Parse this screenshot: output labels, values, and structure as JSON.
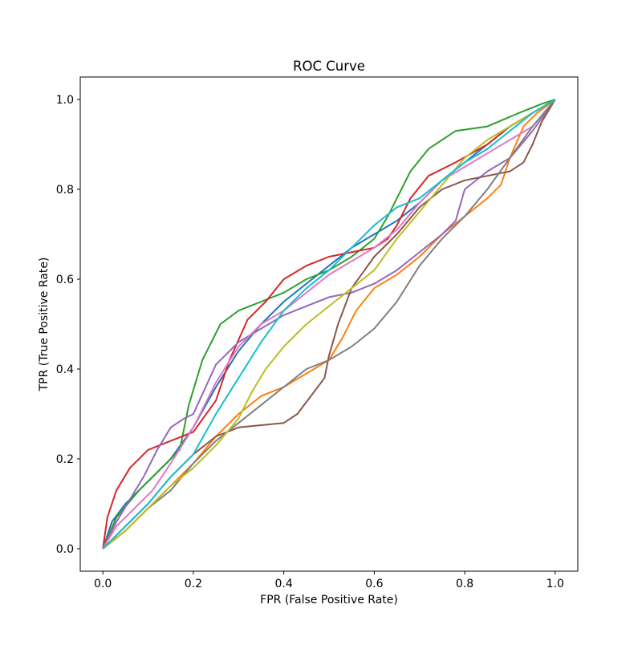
{
  "chart_data": {
    "type": "line",
    "title": "ROC Curve",
    "xlabel": "FPR (False Positive Rate)",
    "ylabel": "TPR (True Positive Rate)",
    "xlim": [
      -0.05,
      1.05
    ],
    "ylim": [
      -0.05,
      1.05
    ],
    "xticks": [
      "0.0",
      "0.2",
      "0.4",
      "0.6",
      "0.8",
      "1.0"
    ],
    "yticks": [
      "0.0",
      "0.2",
      "0.4",
      "0.6",
      "0.8",
      "1.0"
    ],
    "grid": false,
    "legend": "none",
    "series": [
      {
        "color": "#1f77b4",
        "x": [
          0,
          0.02,
          0.05,
          0.1,
          0.15,
          0.2,
          0.25,
          0.3,
          0.35,
          0.4,
          0.45,
          0.5,
          0.55,
          0.6,
          0.65,
          0.7,
          0.75,
          0.8,
          0.85,
          0.9,
          0.95,
          1.0
        ],
        "y": [
          0,
          0.06,
          0.1,
          0.15,
          0.2,
          0.27,
          0.36,
          0.44,
          0.5,
          0.55,
          0.59,
          0.63,
          0.67,
          0.7,
          0.73,
          0.77,
          0.82,
          0.86,
          0.9,
          0.94,
          0.97,
          1.0
        ]
      },
      {
        "color": "#ff7f0e",
        "x": [
          0,
          0.05,
          0.1,
          0.15,
          0.2,
          0.25,
          0.3,
          0.35,
          0.4,
          0.45,
          0.5,
          0.53,
          0.56,
          0.6,
          0.65,
          0.7,
          0.75,
          0.8,
          0.85,
          0.88,
          0.9,
          0.93,
          0.96,
          1.0
        ],
        "y": [
          0,
          0.04,
          0.09,
          0.14,
          0.19,
          0.25,
          0.3,
          0.34,
          0.36,
          0.39,
          0.42,
          0.47,
          0.53,
          0.58,
          0.61,
          0.65,
          0.7,
          0.74,
          0.78,
          0.81,
          0.87,
          0.94,
          0.97,
          1.0
        ]
      },
      {
        "color": "#2ca02c",
        "x": [
          0,
          0.03,
          0.08,
          0.13,
          0.17,
          0.19,
          0.22,
          0.26,
          0.3,
          0.35,
          0.4,
          0.45,
          0.5,
          0.55,
          0.6,
          0.63,
          0.65,
          0.68,
          0.72,
          0.78,
          0.85,
          0.92,
          0.97,
          1.0
        ],
        "y": [
          0,
          0.07,
          0.13,
          0.18,
          0.22,
          0.32,
          0.42,
          0.5,
          0.53,
          0.55,
          0.57,
          0.6,
          0.62,
          0.65,
          0.69,
          0.74,
          0.78,
          0.84,
          0.89,
          0.93,
          0.94,
          0.97,
          0.99,
          1.0
        ]
      },
      {
        "color": "#d62728",
        "x": [
          0,
          0.01,
          0.03,
          0.06,
          0.1,
          0.15,
          0.2,
          0.25,
          0.28,
          0.32,
          0.36,
          0.4,
          0.45,
          0.5,
          0.55,
          0.6,
          0.63,
          0.65,
          0.68,
          0.72,
          0.78,
          0.85,
          0.9,
          0.95,
          1.0
        ],
        "y": [
          0,
          0.07,
          0.13,
          0.18,
          0.22,
          0.24,
          0.26,
          0.33,
          0.42,
          0.51,
          0.55,
          0.6,
          0.63,
          0.65,
          0.66,
          0.67,
          0.69,
          0.72,
          0.78,
          0.83,
          0.86,
          0.9,
          0.94,
          0.97,
          1.0
        ]
      },
      {
        "color": "#9467bd",
        "x": [
          0,
          0.03,
          0.06,
          0.09,
          0.12,
          0.15,
          0.18,
          0.2,
          0.25,
          0.3,
          0.35,
          0.4,
          0.45,
          0.5,
          0.55,
          0.6,
          0.65,
          0.7,
          0.75,
          0.78,
          0.8,
          0.85,
          0.9,
          0.95,
          1.0
        ],
        "y": [
          0,
          0.06,
          0.11,
          0.16,
          0.22,
          0.27,
          0.29,
          0.3,
          0.41,
          0.46,
          0.49,
          0.52,
          0.54,
          0.56,
          0.57,
          0.59,
          0.62,
          0.66,
          0.7,
          0.73,
          0.8,
          0.84,
          0.87,
          0.93,
          1.0
        ]
      },
      {
        "color": "#8c564b",
        "x": [
          0,
          0.05,
          0.1,
          0.15,
          0.2,
          0.25,
          0.3,
          0.35,
          0.4,
          0.43,
          0.46,
          0.49,
          0.5,
          0.52,
          0.55,
          0.6,
          0.65,
          0.7,
          0.75,
          0.8,
          0.85,
          0.9,
          0.93,
          0.95,
          0.97,
          1.0
        ],
        "y": [
          0,
          0.05,
          0.1,
          0.16,
          0.21,
          0.25,
          0.27,
          0.275,
          0.28,
          0.3,
          0.34,
          0.38,
          0.43,
          0.5,
          0.58,
          0.65,
          0.7,
          0.76,
          0.8,
          0.82,
          0.83,
          0.84,
          0.86,
          0.9,
          0.95,
          1.0
        ]
      },
      {
        "color": "#e377c2",
        "x": [
          0,
          0.03,
          0.07,
          0.11,
          0.15,
          0.2,
          0.25,
          0.3,
          0.35,
          0.4,
          0.45,
          0.5,
          0.55,
          0.6,
          0.65,
          0.7,
          0.75,
          0.8,
          0.85,
          0.9,
          0.95,
          1.0
        ],
        "y": [
          0,
          0.05,
          0.09,
          0.13,
          0.19,
          0.27,
          0.37,
          0.45,
          0.5,
          0.53,
          0.57,
          0.61,
          0.64,
          0.67,
          0.71,
          0.77,
          0.82,
          0.85,
          0.88,
          0.91,
          0.94,
          1.0
        ]
      },
      {
        "color": "#7f7f7f",
        "x": [
          0,
          0.05,
          0.1,
          0.15,
          0.2,
          0.25,
          0.3,
          0.35,
          0.4,
          0.45,
          0.5,
          0.55,
          0.6,
          0.65,
          0.7,
          0.75,
          0.8,
          0.85,
          0.9,
          0.95,
          1.0
        ],
        "y": [
          0,
          0.04,
          0.09,
          0.13,
          0.19,
          0.24,
          0.28,
          0.32,
          0.36,
          0.4,
          0.42,
          0.45,
          0.49,
          0.55,
          0.63,
          0.69,
          0.74,
          0.8,
          0.87,
          0.94,
          1.0
        ]
      },
      {
        "color": "#bcbd22",
        "x": [
          0,
          0.05,
          0.1,
          0.15,
          0.2,
          0.25,
          0.3,
          0.33,
          0.36,
          0.4,
          0.45,
          0.5,
          0.55,
          0.6,
          0.65,
          0.7,
          0.75,
          0.8,
          0.85,
          0.9,
          0.95,
          1.0
        ],
        "y": [
          0,
          0.04,
          0.09,
          0.14,
          0.18,
          0.23,
          0.29,
          0.35,
          0.4,
          0.45,
          0.5,
          0.54,
          0.58,
          0.62,
          0.69,
          0.75,
          0.81,
          0.87,
          0.91,
          0.94,
          0.97,
          1.0
        ]
      },
      {
        "color": "#17becf",
        "x": [
          0,
          0.05,
          0.1,
          0.15,
          0.2,
          0.25,
          0.3,
          0.35,
          0.4,
          0.45,
          0.5,
          0.55,
          0.6,
          0.65,
          0.7,
          0.75,
          0.8,
          0.85,
          0.9,
          0.95,
          1.0
        ],
        "y": [
          0,
          0.05,
          0.1,
          0.16,
          0.21,
          0.3,
          0.38,
          0.46,
          0.53,
          0.58,
          0.62,
          0.67,
          0.72,
          0.76,
          0.78,
          0.82,
          0.86,
          0.89,
          0.93,
          0.97,
          1.0
        ]
      }
    ]
  }
}
